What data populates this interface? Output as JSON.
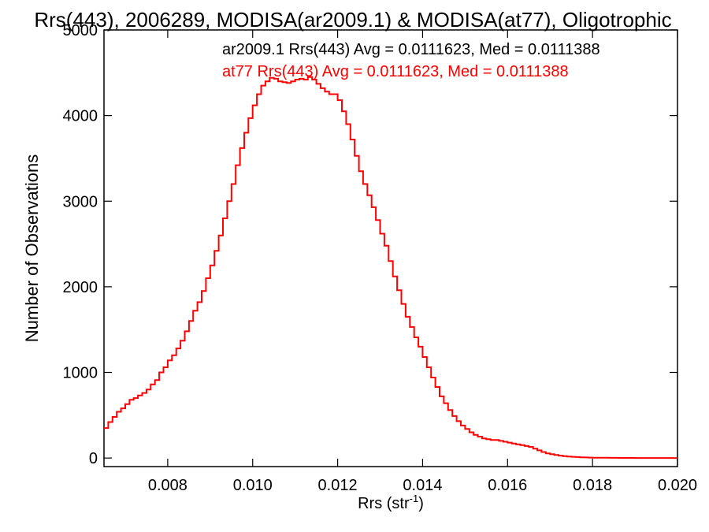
{
  "chart_data": {
    "type": "line",
    "title": "Rrs(443), 2006289, MODISA(ar2009.1) & MODISA(at77), Oligotrophic",
    "xlabel": "Rrs (str",
    "xlabel_sup": "-1",
    "xlabel_end": ")",
    "ylabel": "Number of Observations",
    "xlim": [
      0.0065,
      0.02
    ],
    "ylim": [
      -100,
      5000
    ],
    "xticks": [
      0.008,
      0.01,
      0.012,
      0.014,
      0.016,
      0.018,
      0.02
    ],
    "xtick_labels": [
      "0.008",
      "0.010",
      "0.012",
      "0.014",
      "0.016",
      "0.018",
      "0.020"
    ],
    "yticks": [
      0,
      1000,
      2000,
      3000,
      4000,
      5000
    ],
    "ytick_labels": [
      "0",
      "1000",
      "2000",
      "3000",
      "4000",
      "5000"
    ],
    "grid": false,
    "legend_position": "top-right",
    "annotations": [
      {
        "text": "ar2009.1 Rrs(443) Avg = 0.0111623, Med = 0.0111388",
        "color": "#000000"
      },
      {
        "text": "at77 Rrs(443) Avg = 0.0111623, Med = 0.0111388",
        "color": "#ff0000"
      }
    ],
    "series": [
      {
        "color": "#ff0000",
        "style": "step",
        "points": [
          [
            0.0065,
            350
          ],
          [
            0.0066,
            420
          ],
          [
            0.0067,
            480
          ],
          [
            0.0068,
            540
          ],
          [
            0.0069,
            580
          ],
          [
            0.007,
            630
          ],
          [
            0.0071,
            680
          ],
          [
            0.0072,
            700
          ],
          [
            0.0073,
            730
          ],
          [
            0.0074,
            760
          ],
          [
            0.0075,
            800
          ],
          [
            0.0076,
            860
          ],
          [
            0.0077,
            910
          ],
          [
            0.0078,
            1000
          ],
          [
            0.0079,
            1060
          ],
          [
            0.008,
            1140
          ],
          [
            0.0081,
            1200
          ],
          [
            0.0082,
            1280
          ],
          [
            0.0083,
            1370
          ],
          [
            0.0084,
            1480
          ],
          [
            0.0085,
            1600
          ],
          [
            0.0086,
            1720
          ],
          [
            0.0087,
            1820
          ],
          [
            0.0088,
            1950
          ],
          [
            0.0089,
            2100
          ],
          [
            0.009,
            2250
          ],
          [
            0.0091,
            2420
          ],
          [
            0.0092,
            2600
          ],
          [
            0.0093,
            2800
          ],
          [
            0.0094,
            3000
          ],
          [
            0.0095,
            3200
          ],
          [
            0.0096,
            3420
          ],
          [
            0.0097,
            3620
          ],
          [
            0.0098,
            3800
          ],
          [
            0.0099,
            3970
          ],
          [
            0.01,
            4120
          ],
          [
            0.0101,
            4250
          ],
          [
            0.0102,
            4350
          ],
          [
            0.0103,
            4400
          ],
          [
            0.0104,
            4440
          ],
          [
            0.0105,
            4430
          ],
          [
            0.0106,
            4400
          ],
          [
            0.0107,
            4390
          ],
          [
            0.0108,
            4380
          ],
          [
            0.0109,
            4400
          ],
          [
            0.011,
            4420
          ],
          [
            0.0111,
            4430
          ],
          [
            0.0112,
            4420
          ],
          [
            0.0113,
            4450
          ],
          [
            0.0114,
            4420
          ],
          [
            0.0115,
            4370
          ],
          [
            0.0116,
            4320
          ],
          [
            0.0117,
            4280
          ],
          [
            0.0118,
            4250
          ],
          [
            0.0119,
            4250
          ],
          [
            0.012,
            4180
          ],
          [
            0.0121,
            4050
          ],
          [
            0.0122,
            3900
          ],
          [
            0.0123,
            3720
          ],
          [
            0.0124,
            3530
          ],
          [
            0.0125,
            3350
          ],
          [
            0.0126,
            3200
          ],
          [
            0.0127,
            3070
          ],
          [
            0.0128,
            2930
          ],
          [
            0.0129,
            2780
          ],
          [
            0.013,
            2620
          ],
          [
            0.0131,
            2480
          ],
          [
            0.0132,
            2300
          ],
          [
            0.0133,
            2120
          ],
          [
            0.0134,
            1960
          ],
          [
            0.0135,
            1800
          ],
          [
            0.0136,
            1650
          ],
          [
            0.0137,
            1530
          ],
          [
            0.0138,
            1410
          ],
          [
            0.0139,
            1300
          ],
          [
            0.014,
            1180
          ],
          [
            0.0141,
            1060
          ],
          [
            0.0142,
            940
          ],
          [
            0.0143,
            830
          ],
          [
            0.0144,
            720
          ],
          [
            0.0145,
            640
          ],
          [
            0.0146,
            560
          ],
          [
            0.0147,
            490
          ],
          [
            0.0148,
            430
          ],
          [
            0.0149,
            380
          ],
          [
            0.015,
            340
          ],
          [
            0.0151,
            300
          ],
          [
            0.0152,
            270
          ],
          [
            0.0153,
            250
          ],
          [
            0.0154,
            230
          ],
          [
            0.0155,
            220
          ],
          [
            0.0156,
            210
          ],
          [
            0.0157,
            210
          ],
          [
            0.0158,
            200
          ],
          [
            0.0159,
            190
          ],
          [
            0.016,
            180
          ],
          [
            0.0161,
            170
          ],
          [
            0.0162,
            160
          ],
          [
            0.0163,
            150
          ],
          [
            0.0164,
            140
          ],
          [
            0.0165,
            130
          ],
          [
            0.0166,
            110
          ],
          [
            0.0167,
            90
          ],
          [
            0.0168,
            70
          ],
          [
            0.0169,
            55
          ],
          [
            0.017,
            45
          ],
          [
            0.0171,
            35
          ],
          [
            0.0172,
            28
          ],
          [
            0.0173,
            22
          ],
          [
            0.0174,
            18
          ],
          [
            0.0175,
            14
          ],
          [
            0.0176,
            11
          ],
          [
            0.0177,
            9
          ],
          [
            0.0178,
            7
          ],
          [
            0.0179,
            5
          ],
          [
            0.018,
            4
          ],
          [
            0.0182,
            3
          ],
          [
            0.0184,
            2
          ],
          [
            0.0186,
            1
          ],
          [
            0.0188,
            1
          ],
          [
            0.019,
            0
          ],
          [
            0.0193,
            0
          ],
          [
            0.0196,
            0
          ],
          [
            0.0199,
            0
          ]
        ]
      }
    ]
  }
}
